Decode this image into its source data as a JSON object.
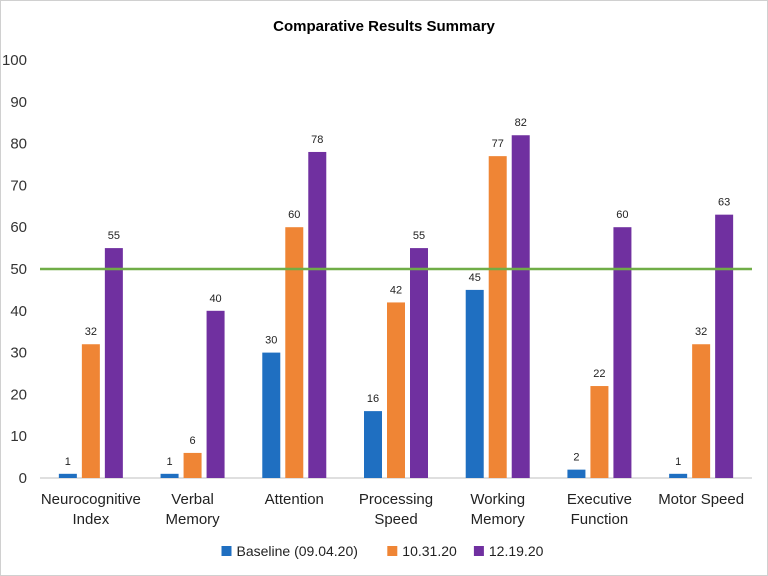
{
  "chart_data": {
    "type": "bar",
    "title": "Comparative Results Summary",
    "xlabel": "",
    "ylabel": "",
    "ylim": [
      0,
      100
    ],
    "yticks": [
      0,
      10,
      20,
      30,
      40,
      50,
      60,
      70,
      80,
      90,
      100
    ],
    "categories": [
      [
        "Neurocognitive",
        "Index"
      ],
      [
        "Verbal",
        "Memory"
      ],
      [
        "Attention"
      ],
      [
        "Processing",
        "Speed"
      ],
      [
        "Working",
        "Memory"
      ],
      [
        "Executive",
        "Function"
      ],
      [
        "Motor Speed"
      ]
    ],
    "series": [
      {
        "name": "Baseline (09.04.20)",
        "color": "#1f6fc1",
        "values": [
          1,
          1,
          30,
          16,
          45,
          2,
          1
        ]
      },
      {
        "name": "10.31.20",
        "color": "#ef8535",
        "values": [
          32,
          6,
          60,
          42,
          77,
          22,
          32
        ]
      },
      {
        "name": "12.19.20",
        "color": "#7030a0",
        "values": [
          55,
          40,
          78,
          55,
          82,
          60,
          63
        ]
      }
    ],
    "reference_line": {
      "value": 50,
      "color": "#70ad47"
    },
    "grid": false,
    "legend_position": "bottom"
  }
}
